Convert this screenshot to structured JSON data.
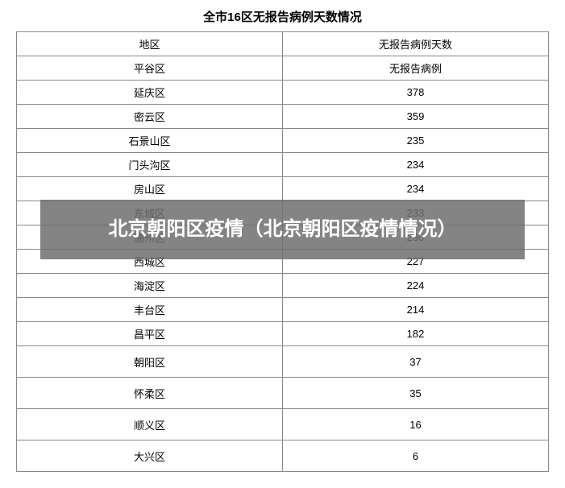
{
  "title": "全市16区无报告病例天数情况",
  "columns": [
    "地区",
    "无报告病例天数"
  ],
  "rows": [
    {
      "district": "平谷区",
      "days": "无报告病例",
      "tall": false
    },
    {
      "district": "延庆区",
      "days": "378",
      "tall": false
    },
    {
      "district": "密云区",
      "days": "359",
      "tall": false
    },
    {
      "district": "石景山区",
      "days": "235",
      "tall": false
    },
    {
      "district": "门头沟区",
      "days": "234",
      "tall": false
    },
    {
      "district": "房山区",
      "days": "234",
      "tall": false
    },
    {
      "district": "东城区",
      "days": "233",
      "tall": false
    },
    {
      "district": "通州区",
      "days": "230",
      "tall": false
    },
    {
      "district": "西城区",
      "days": "227",
      "tall": false
    },
    {
      "district": "海淀区",
      "days": "224",
      "tall": false
    },
    {
      "district": "丰台区",
      "days": "214",
      "tall": false
    },
    {
      "district": "昌平区",
      "days": "182",
      "tall": false
    },
    {
      "district": "朝阳区",
      "days": "37",
      "tall": true
    },
    {
      "district": "怀柔区",
      "days": "35",
      "tall": true
    },
    {
      "district": "顺义区",
      "days": "16",
      "tall": true
    },
    {
      "district": "大兴区",
      "days": "6",
      "tall": true
    }
  ],
  "overlay_text": "北京朝阳区疫情（北京朝阳区疫情情况）",
  "styling": {
    "background_color": "#ffffff",
    "border_color": "#888888",
    "text_color": "#000000",
    "title_fontsize": 15,
    "cell_fontsize": 13,
    "overlay_bg": "rgba(110,110,110,0.85)",
    "overlay_text_color": "#ffffff",
    "overlay_fontsize": 24
  }
}
